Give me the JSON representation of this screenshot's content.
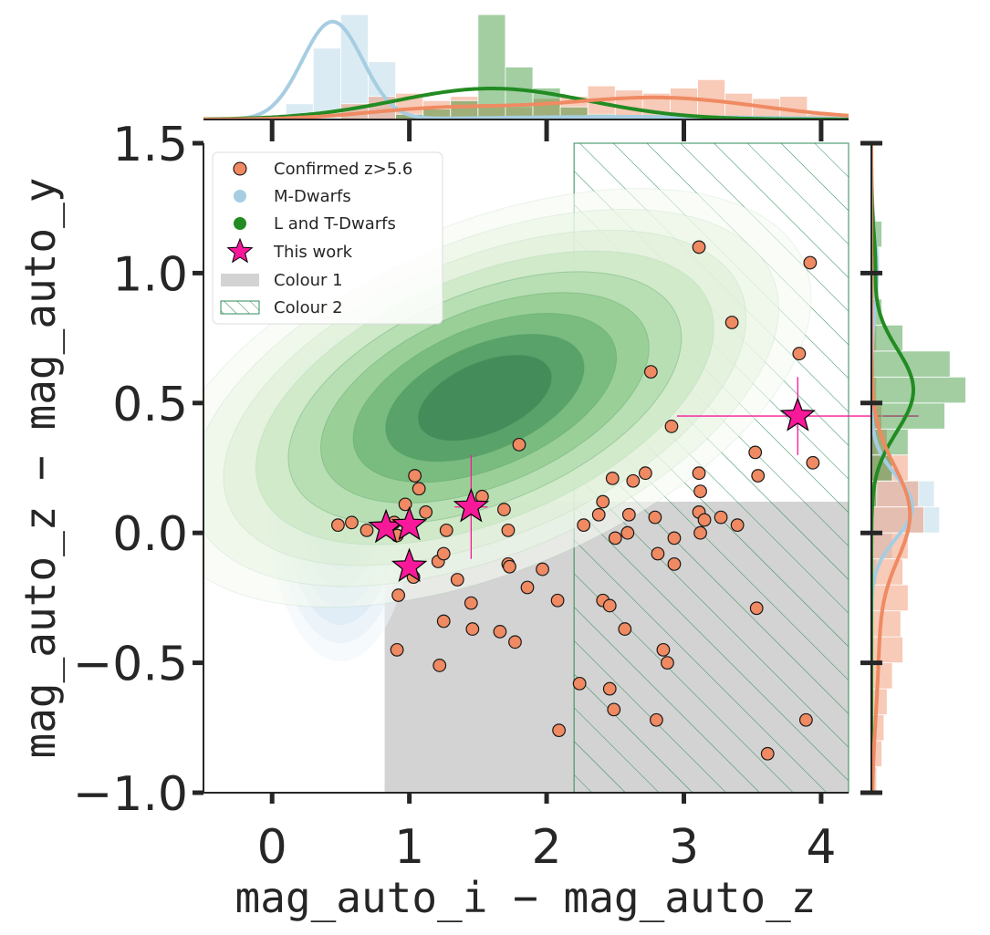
{
  "chart_data": {
    "type": "scatter",
    "xlabel": "mag_auto_i − mag_auto_z",
    "ylabel": "mag_auto_z − mag_auto_y",
    "xlim": [
      -0.5,
      4.2
    ],
    "ylim": [
      -1.0,
      1.5
    ],
    "x_ticks": [
      0,
      1,
      2,
      3,
      4
    ],
    "x_tick_labels": [
      "0",
      "1",
      "2",
      "3",
      "4"
    ],
    "y_ticks": [
      -1.0,
      -0.5,
      0.0,
      0.5,
      1.0,
      1.5
    ],
    "y_tick_labels": [
      "−1.0",
      "−0.5",
      "0.0",
      "0.5",
      "1.0",
      "1.5"
    ],
    "legend": {
      "position": "top-left",
      "entries": [
        {
          "label": "Confirmed z>5.6",
          "marker": "circle",
          "color": "#ef8a62"
        },
        {
          "label": "M-Dwarfs",
          "marker": "circle",
          "color": "#a6cde2"
        },
        {
          "label": "L and T-Dwarfs",
          "marker": "circle",
          "color": "#228b22"
        },
        {
          "label": "This work",
          "marker": "star",
          "color": "#f7199a"
        },
        {
          "label": "Colour 1",
          "marker": "patch",
          "color": "#d3d3d3"
        },
        {
          "label": "Colour 2",
          "marker": "hatch",
          "color": "#2e8b57"
        }
      ]
    },
    "regions": {
      "colour_1": {
        "x_min": 0.82,
        "y_max": 0.12
      },
      "colour_2": {
        "x_min": 2.2
      }
    },
    "kde_centers": {
      "m_dwarfs": {
        "x": 0.5,
        "y": 0.13
      },
      "lt_dwarfs": {
        "x": 1.55,
        "y": 0.52
      }
    },
    "confirmed": [
      [
        0.48,
        0.03
      ],
      [
        0.58,
        0.04
      ],
      [
        0.69,
        0.01
      ],
      [
        0.85,
        0.02
      ],
      [
        0.89,
        0.04
      ],
      [
        0.91,
        -0.01
      ],
      [
        0.97,
        0.11
      ],
      [
        1.04,
        0.22
      ],
      [
        1.07,
        0.17
      ],
      [
        1.12,
        0.08
      ],
      [
        1.03,
        -0.17
      ],
      [
        1.21,
        -0.11
      ],
      [
        1.25,
        -0.08
      ],
      [
        1.27,
        0.01
      ],
      [
        1.35,
        -0.18
      ],
      [
        1.45,
        -0.27
      ],
      [
        1.46,
        -0.37
      ],
      [
        1.53,
        0.14
      ],
      [
        1.66,
        -0.38
      ],
      [
        1.69,
        0.09
      ],
      [
        1.72,
        0.01
      ],
      [
        1.72,
        -0.12
      ],
      [
        1.73,
        -0.13
      ],
      [
        1.77,
        -0.42
      ],
      [
        1.8,
        0.34
      ],
      [
        1.86,
        -0.21
      ],
      [
        1.97,
        -0.14
      ],
      [
        2.08,
        -0.26
      ],
      [
        2.09,
        -0.76
      ],
      [
        0.92,
        -0.24
      ],
      [
        0.91,
        -0.45
      ],
      [
        1.22,
        -0.51
      ],
      [
        1.25,
        -0.34
      ],
      [
        2.24,
        -0.58
      ],
      [
        2.27,
        0.03
      ],
      [
        2.38,
        0.07
      ],
      [
        2.41,
        0.12
      ],
      [
        2.41,
        -0.26
      ],
      [
        2.46,
        -0.28
      ],
      [
        2.48,
        0.21
      ],
      [
        2.46,
        -0.6
      ],
      [
        2.49,
        -0.68
      ],
      [
        2.5,
        -0.02
      ],
      [
        2.59,
        0.0
      ],
      [
        2.57,
        -0.37
      ],
      [
        2.6,
        0.07
      ],
      [
        2.63,
        0.2
      ],
      [
        2.72,
        0.23
      ],
      [
        2.76,
        0.62
      ],
      [
        2.79,
        0.06
      ],
      [
        2.81,
        -0.08
      ],
      [
        2.8,
        -0.72
      ],
      [
        2.85,
        -0.45
      ],
      [
        2.88,
        -0.5
      ],
      [
        2.91,
        0.41
      ],
      [
        2.93,
        -0.02
      ],
      [
        2.93,
        -0.12
      ],
      [
        3.11,
        1.1
      ],
      [
        3.11,
        0.23
      ],
      [
        3.11,
        0.08
      ],
      [
        3.12,
        0.16
      ],
      [
        3.12,
        0.0
      ],
      [
        3.15,
        0.05
      ],
      [
        3.27,
        0.06
      ],
      [
        3.35,
        0.81
      ],
      [
        3.39,
        0.03
      ],
      [
        3.52,
        0.31
      ],
      [
        3.53,
        -0.29
      ],
      [
        3.54,
        0.22
      ],
      [
        3.61,
        -0.85
      ],
      [
        3.84,
        0.69
      ],
      [
        3.89,
        -0.72
      ],
      [
        3.92,
        1.04
      ],
      [
        3.94,
        0.27
      ]
    ],
    "this_work": [
      {
        "x": 0.83,
        "y": 0.02
      },
      {
        "x": 1.0,
        "y": 0.03
      },
      {
        "x": 1.0,
        "y": -0.13
      },
      {
        "x": 1.45,
        "y": 0.1,
        "xerr": 0.12,
        "yerr": 0.2
      },
      {
        "x": 3.83,
        "y": 0.45,
        "xerr": 0.88,
        "yerr": 0.15
      }
    ],
    "top_marginal": {
      "bin_edges": [
        -0.5,
        -0.3,
        -0.1,
        0.1,
        0.3,
        0.5,
        0.7,
        0.9,
        1.1,
        1.3,
        1.5,
        1.7,
        1.9,
        2.1,
        2.3,
        2.5,
        2.7,
        2.9,
        3.1,
        3.3,
        3.5,
        3.7,
        3.9,
        4.1
      ],
      "m_dwarfs_counts": [
        0,
        0,
        0.03,
        0.15,
        0.68,
        1.0,
        0.55,
        0.05,
        0,
        0,
        0,
        0,
        0,
        0,
        0,
        0,
        0,
        0,
        0,
        0,
        0,
        0,
        0
      ],
      "lt_dwarfs_counts": [
        0,
        0,
        0,
        0,
        0,
        0,
        0,
        0.05,
        0.1,
        0.18,
        1.0,
        0.5,
        0.3,
        0.12,
        0.05,
        0,
        0,
        0,
        0,
        0,
        0,
        0,
        0
      ],
      "confirmed_counts": [
        0,
        0,
        0,
        0,
        0,
        0.15,
        0.22,
        0.25,
        0.18,
        0.22,
        0.15,
        0.12,
        0.2,
        0.22,
        0.32,
        0.28,
        0.25,
        0.3,
        0.38,
        0.25,
        0.2,
        0.22,
        0.05
      ]
    },
    "right_marginal": {
      "bin_edges": [
        -1.0,
        -0.9,
        -0.8,
        -0.7,
        -0.6,
        -0.5,
        -0.4,
        -0.3,
        -0.2,
        -0.1,
        0.0,
        0.1,
        0.2,
        0.3,
        0.4,
        0.5,
        0.6,
        0.7,
        0.8,
        0.9,
        1.0,
        1.1,
        1.2
      ],
      "m_dwarfs_counts": [
        0,
        0,
        0,
        0,
        0,
        0,
        0,
        0,
        0.05,
        0.2,
        0.65,
        0.6,
        0.2,
        0.05,
        0,
        0,
        0,
        0,
        0,
        0.05,
        0.08,
        0.04
      ],
      "lt_dwarfs_counts": [
        0,
        0,
        0,
        0,
        0,
        0,
        0,
        0,
        0,
        0,
        0,
        0.05,
        0.2,
        0.35,
        0.7,
        0.9,
        0.75,
        0.3,
        0.1,
        0.05,
        0.05,
        0.1
      ],
      "confirmed_counts": [
        0.05,
        0.1,
        0.12,
        0.15,
        0.2,
        0.3,
        0.28,
        0.35,
        0.3,
        0.35,
        0.5,
        0.45,
        0.35,
        0.15,
        0.1,
        0.05,
        0.03,
        0.05,
        0.03,
        0.02,
        0.04,
        0.03
      ]
    }
  }
}
